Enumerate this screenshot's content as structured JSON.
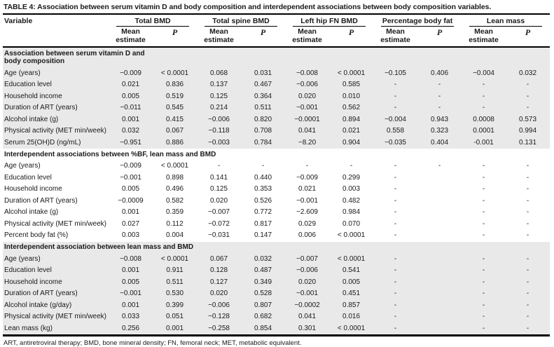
{
  "title": "TABLE 4: Association between serum vitamin D and body composition and interdependent associations between body composition variables.",
  "footnote": "ART, antiretroviral therapy; BMD, bone mineral density; FN, femoral neck; MET, metabolic equivalent.",
  "columns": {
    "variable_header": "Variable",
    "groups": [
      "Total BMD",
      "Total spine BMD",
      "Left hip FN BMD",
      "Percentage body fat",
      "Lean mass"
    ],
    "sub_mean": "Mean estimate",
    "sub_p": "P"
  },
  "sections": [
    {
      "header": "Association between serum vitamin D and body composition",
      "shaded": true,
      "rows": [
        {
          "variable": "Age (years)",
          "values": [
            "−0.009",
            "< 0.0001",
            "0.068",
            "0.031",
            "−0.008",
            "< 0.0001",
            "−0.105",
            "0.406",
            "−0.004",
            "0.032"
          ]
        },
        {
          "variable": "Education level",
          "values": [
            "0.021",
            "0.836",
            "0.137",
            "0.467",
            "−0.006",
            "0.585",
            "-",
            "-",
            "-",
            "-"
          ]
        },
        {
          "variable": "Household income",
          "values": [
            "0.005",
            "0.519",
            "0.125",
            "0.364",
            "0.020",
            "0.010",
            "-",
            "-",
            "-",
            "-"
          ]
        },
        {
          "variable": "Duration of ART (years)",
          "values": [
            "−0.011",
            "0.545",
            "0.214",
            "0.511",
            "−0.001",
            "0.562",
            "-",
            "-",
            "-",
            "-"
          ]
        },
        {
          "variable": "Alcohol intake (g)",
          "values": [
            "0.001",
            "0.415",
            "−0.006",
            "0.820",
            "−0.0001",
            "0.894",
            "−0.004",
            "0.943",
            "0.0008",
            "0.573"
          ]
        },
        {
          "variable": "Physical activity (MET min/week)",
          "values": [
            "0.032",
            "0.067",
            "−0.118",
            "0.708",
            "0.041",
            "0.021",
            "0.558",
            "0.323",
            "0.0001",
            "0.994"
          ]
        },
        {
          "variable": "Serum 25(OH)D (ng/mL)",
          "values": [
            "−0.951",
            "0.886",
            "−0.003",
            "0.784",
            "−8.20",
            "0.904",
            "−0.035",
            "0.404",
            "-0.001",
            "0.131"
          ]
        }
      ]
    },
    {
      "header": "Interdependent associations between %BF, lean mass and BMD",
      "shaded": false,
      "rows": [
        {
          "variable": "Age (years)",
          "values": [
            "−0.009",
            "< 0.0001",
            "-",
            "-",
            "-",
            "-",
            "-",
            "-",
            "-",
            "-"
          ]
        },
        {
          "variable": "Education level",
          "values": [
            "−0.001",
            "0.898",
            "0.141",
            "0.440",
            "−0.009",
            "0.299",
            "-",
            "",
            "-",
            "-"
          ]
        },
        {
          "variable": "Household income",
          "values": [
            "0.005",
            "0.496",
            "0.125",
            "0.353",
            "0.021",
            "0.003",
            "-",
            "",
            "-",
            "-"
          ]
        },
        {
          "variable": "Duration of ART (years)",
          "values": [
            "−0.0009",
            "0.582",
            "0.020",
            "0.526",
            "−0.001",
            "0.482",
            "-",
            "",
            "-",
            "-"
          ]
        },
        {
          "variable": "Alcohol intake (g)",
          "values": [
            "0.001",
            "0.359",
            "−0.007",
            "0.772",
            "−2.609",
            "0.984",
            "-",
            "",
            "-",
            "-"
          ]
        },
        {
          "variable": "Physical activity (MET min/week)",
          "values": [
            "0.027",
            "0.112",
            "−0.072",
            "0.817",
            "0.029",
            "0.070",
            "-",
            "",
            "-",
            "-"
          ]
        },
        {
          "variable": "Percent body fat (%)",
          "values": [
            "0.003",
            "0.004",
            "−0.031",
            "0.147",
            "0.006",
            "< 0.0001",
            "-",
            "",
            "-",
            "-"
          ]
        }
      ]
    },
    {
      "header": "Interdependent association between lean mass and BMD",
      "shaded": true,
      "rows": [
        {
          "variable": "Age (years)",
          "values": [
            "−0.008",
            "< 0.0001",
            "0.067",
            "0.032",
            "−0.007",
            "< 0.0001",
            "-",
            "",
            "-",
            "-"
          ]
        },
        {
          "variable": "Education level",
          "values": [
            "0.001",
            "0.911",
            "0.128",
            "0.487",
            "−0.006",
            "0.541",
            "-",
            "",
            "-",
            "-"
          ]
        },
        {
          "variable": "Household income",
          "values": [
            "0.005",
            "0.511",
            "0.127",
            "0.349",
            "0.020",
            "0.005",
            "-",
            "",
            "-",
            "-"
          ]
        },
        {
          "variable": "Duration of ART (years)",
          "values": [
            "−0.001",
            "0.530",
            "0.020",
            "0.528",
            "−0.001",
            "0.451",
            "-",
            "",
            "-",
            "-"
          ]
        },
        {
          "variable": "Alcohol intake (g/day)",
          "values": [
            "0.001",
            "0.399",
            "−0.006",
            "0.807",
            "−0.0002",
            "0.857",
            "-",
            "",
            "-",
            "-"
          ]
        },
        {
          "variable": "Physical activity (MET min/week)",
          "values": [
            "0.033",
            "0.051",
            "−0.128",
            "0.682",
            "0.041",
            "0.016",
            "-",
            "",
            "-",
            "-"
          ]
        },
        {
          "variable": "Lean mass (kg)",
          "values": [
            "0.256",
            "0.001",
            "−0.258",
            "0.854",
            "0.301",
            "< 0.0001",
            "-",
            "",
            "-",
            "-"
          ]
        }
      ]
    }
  ]
}
